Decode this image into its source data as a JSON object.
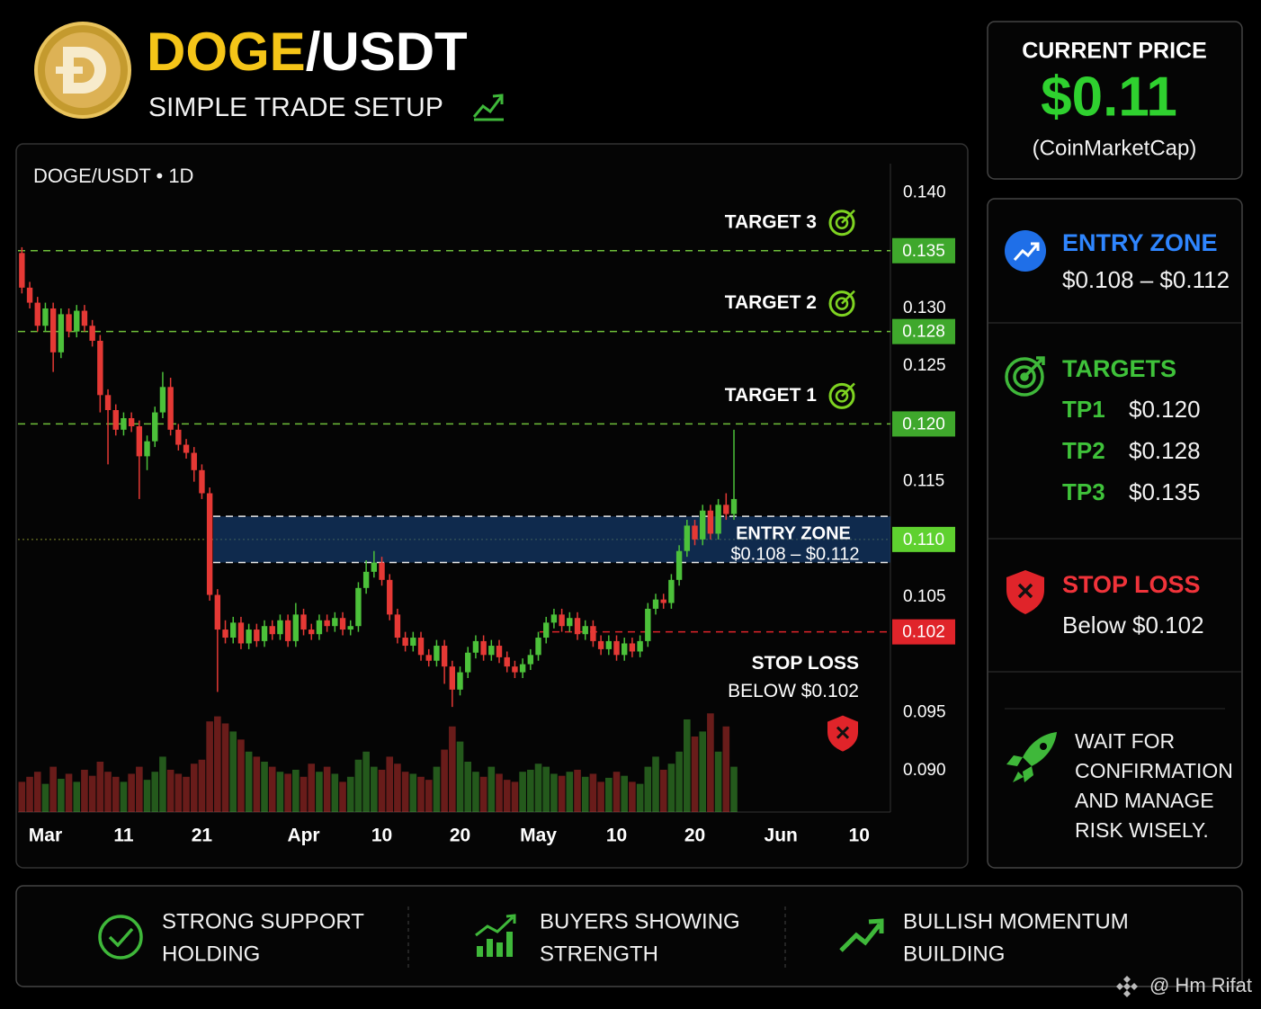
{
  "header": {
    "title_base": "DOGE",
    "title_quote": "/USDT",
    "subtitle": "SIMPLE TRADE SETUP"
  },
  "price_box": {
    "label": "CURRENT PRICE",
    "value": "$0.11",
    "source": "(CoinMarketCap)"
  },
  "plan": {
    "entry": {
      "title": "ENTRY ZONE",
      "range": "$0.108 – $0.112"
    },
    "targets": {
      "title": "TARGETS",
      "items": [
        {
          "name": "TP1",
          "price": "$0.120"
        },
        {
          "name": "TP2",
          "price": "$0.128"
        },
        {
          "name": "TP3",
          "price": "$0.135"
        }
      ]
    },
    "stop": {
      "title": "STOP LOSS",
      "text": "Below $0.102"
    },
    "note": [
      "WAIT FOR",
      "CONFIRMATION",
      "AND MANAGE",
      "RISK WISELY."
    ]
  },
  "footer": {
    "items": [
      {
        "lines": [
          "STRONG SUPPORT",
          "HOLDING"
        ]
      },
      {
        "lines": [
          "BUYERS SHOWING",
          "STRENGTH"
        ]
      },
      {
        "lines": [
          "BULLISH MOMENTUM",
          "BUILDING"
        ]
      }
    ]
  },
  "watermark": "@ Hm Rifat",
  "chart_data": {
    "type": "candlestick",
    "title": "DOGE/USDT • 1D",
    "up_color": "#4cc13a",
    "down_color": "#e53935",
    "xlim": [
      -0.5,
      111
    ],
    "xticks": [
      {
        "value": 3,
        "label": "Mar"
      },
      {
        "value": 13,
        "label": "11"
      },
      {
        "value": 23,
        "label": "21"
      },
      {
        "value": 36,
        "label": "Apr"
      },
      {
        "value": 46,
        "label": "10"
      },
      {
        "value": 56,
        "label": "20"
      },
      {
        "value": 66,
        "label": "May"
      },
      {
        "value": 76,
        "label": "10"
      },
      {
        "value": 86,
        "label": "20"
      },
      {
        "value": 97,
        "label": "Jun"
      },
      {
        "value": 107,
        "label": "10"
      }
    ],
    "ylim": [
      0.0864,
      0.1423
    ],
    "yticks": [
      {
        "value": 0.09,
        "label": "0.090"
      },
      0.095,
      0.105,
      0.115,
      0.125,
      {
        "value": 0.13,
        "label": "0.130"
      },
      {
        "value": 0.14,
        "label": "0.140"
      }
    ],
    "levels": [
      {
        "name": "TARGET 3",
        "value": 0.135,
        "tag": "0.135",
        "color": "#3fa82c"
      },
      {
        "name": "TARGET 2",
        "value": 0.128,
        "tag": "0.128",
        "color": "#3fa82c"
      },
      {
        "name": "TARGET 1",
        "value": 0.12,
        "tag": "0.120",
        "color": "#3fa82c"
      }
    ],
    "current": {
      "value": 0.11,
      "tag": "0.110",
      "color": "#5fd12f"
    },
    "entry_zone": {
      "low": 0.108,
      "high": 0.112,
      "label": "ENTRY ZONE",
      "range_label": "$0.108 – $0.112"
    },
    "stop": {
      "value": 0.102,
      "tag": "0.102",
      "name": "STOP LOSS",
      "note": "BELOW $0.102",
      "color": "#e0242a"
    },
    "vlim": [
      0,
      100
    ],
    "ohlc": [
      [
        0.1348,
        0.1353,
        0.1313,
        0.1318
      ],
      [
        0.1318,
        0.1323,
        0.13,
        0.1305
      ],
      [
        0.1305,
        0.131,
        0.128,
        0.1285
      ],
      [
        0.1285,
        0.1305,
        0.128,
        0.13
      ],
      [
        0.13,
        0.1305,
        0.1245,
        0.1262
      ],
      [
        0.1262,
        0.13,
        0.1257,
        0.1295
      ],
      [
        0.1295,
        0.13,
        0.1275,
        0.128
      ],
      [
        0.128,
        0.1303,
        0.1275,
        0.1298
      ],
      [
        0.1298,
        0.1303,
        0.128,
        0.1285
      ],
      [
        0.1285,
        0.129,
        0.1267,
        0.1272
      ],
      [
        0.1272,
        0.1277,
        0.121,
        0.1225
      ],
      [
        0.1225,
        0.123,
        0.1165,
        0.1212
      ],
      [
        0.1212,
        0.1217,
        0.119,
        0.1195
      ],
      [
        0.1195,
        0.121,
        0.119,
        0.1205
      ],
      [
        0.1205,
        0.121,
        0.1193,
        0.1198
      ],
      [
        0.1198,
        0.1203,
        0.1135,
        0.1172
      ],
      [
        0.1172,
        0.119,
        0.116,
        0.1185
      ],
      [
        0.1185,
        0.1215,
        0.118,
        0.121
      ],
      [
        0.121,
        0.1245,
        0.1205,
        0.1232
      ],
      [
        0.1232,
        0.124,
        0.119,
        0.1195
      ],
      [
        0.1195,
        0.12,
        0.1177,
        0.1182
      ],
      [
        0.1182,
        0.1187,
        0.117,
        0.1175
      ],
      [
        0.1175,
        0.118,
        0.115,
        0.116
      ],
      [
        0.116,
        0.1165,
        0.1135,
        0.114
      ],
      [
        0.114,
        0.1145,
        0.1047,
        0.1052
      ],
      [
        0.1052,
        0.1057,
        0.0968,
        0.1022
      ],
      [
        0.1022,
        0.103,
        0.101,
        0.1015
      ],
      [
        0.1015,
        0.1033,
        0.101,
        0.1028
      ],
      [
        0.1028,
        0.1033,
        0.1005,
        0.101
      ],
      [
        0.101,
        0.1027,
        0.1005,
        0.1022
      ],
      [
        0.1022,
        0.1027,
        0.1007,
        0.1012
      ],
      [
        0.1012,
        0.103,
        0.1007,
        0.1025
      ],
      [
        0.1025,
        0.103,
        0.1013,
        0.1018
      ],
      [
        0.1018,
        0.1035,
        0.1013,
        0.103
      ],
      [
        0.103,
        0.1035,
        0.1007,
        0.1012
      ],
      [
        0.1012,
        0.1045,
        0.1007,
        0.1035
      ],
      [
        0.1035,
        0.104,
        0.1017,
        0.1022
      ],
      [
        0.1022,
        0.1027,
        0.1013,
        0.1018
      ],
      [
        0.1018,
        0.1035,
        0.1013,
        0.103
      ],
      [
        0.103,
        0.1035,
        0.102,
        0.1025
      ],
      [
        0.1025,
        0.1037,
        0.102,
        0.1032
      ],
      [
        0.1032,
        0.1037,
        0.1017,
        0.1022
      ],
      [
        0.1022,
        0.103,
        0.1017,
        0.1025
      ],
      [
        0.1025,
        0.1063,
        0.102,
        0.1058
      ],
      [
        0.1058,
        0.1082,
        0.1053,
        0.1072
      ],
      [
        0.1072,
        0.109,
        0.1067,
        0.108
      ],
      [
        0.108,
        0.1085,
        0.106,
        0.1065
      ],
      [
        0.1065,
        0.107,
        0.103,
        0.1035
      ],
      [
        0.1035,
        0.104,
        0.101,
        0.1015
      ],
      [
        0.1015,
        0.102,
        0.1003,
        0.1008
      ],
      [
        0.1008,
        0.102,
        0.1003,
        0.1015
      ],
      [
        0.1015,
        0.102,
        0.0995,
        0.1
      ],
      [
        0.1,
        0.1005,
        0.099,
        0.0995
      ],
      [
        0.0995,
        0.1013,
        0.099,
        0.1008
      ],
      [
        0.1008,
        0.1013,
        0.0975,
        0.099
      ],
      [
        0.099,
        0.0995,
        0.0955,
        0.097
      ],
      [
        0.097,
        0.099,
        0.0965,
        0.0985
      ],
      [
        0.0985,
        0.1007,
        0.098,
        0.1002
      ],
      [
        0.1002,
        0.1017,
        0.0997,
        0.1012
      ],
      [
        0.1012,
        0.1017,
        0.0995,
        0.1
      ],
      [
        0.1,
        0.1013,
        0.0995,
        0.1008
      ],
      [
        0.1008,
        0.1013,
        0.0993,
        0.0998
      ],
      [
        0.0998,
        0.1003,
        0.0985,
        0.099
      ],
      [
        0.099,
        0.0995,
        0.098,
        0.0985
      ],
      [
        0.0985,
        0.0997,
        0.098,
        0.0992
      ],
      [
        0.0992,
        0.1005,
        0.0987,
        0.1
      ],
      [
        0.1,
        0.102,
        0.0995,
        0.1015
      ],
      [
        0.1015,
        0.1033,
        0.101,
        0.1028
      ],
      [
        0.1028,
        0.104,
        0.1023,
        0.1035
      ],
      [
        0.1035,
        0.104,
        0.102,
        0.1025
      ],
      [
        0.1025,
        0.1037,
        0.102,
        0.1032
      ],
      [
        0.1032,
        0.1037,
        0.1013,
        0.1018
      ],
      [
        0.1018,
        0.103,
        0.1013,
        0.1025
      ],
      [
        0.1025,
        0.103,
        0.1007,
        0.1012
      ],
      [
        0.1012,
        0.1017,
        0.1,
        0.1005
      ],
      [
        0.1005,
        0.1017,
        0.1,
        0.1012
      ],
      [
        0.1012,
        0.1017,
        0.0995,
        0.1
      ],
      [
        0.1,
        0.1015,
        0.0995,
        0.101
      ],
      [
        0.101,
        0.1015,
        0.0998,
        0.1003
      ],
      [
        0.1003,
        0.1017,
        0.0998,
        0.1012
      ],
      [
        0.1012,
        0.1045,
        0.1007,
        0.104
      ],
      [
        0.104,
        0.1053,
        0.1035,
        0.1048
      ],
      [
        0.1048,
        0.1053,
        0.104,
        0.1045
      ],
      [
        0.1045,
        0.107,
        0.104,
        0.1065
      ],
      [
        0.1065,
        0.1095,
        0.106,
        0.109
      ],
      [
        0.109,
        0.1117,
        0.1085,
        0.1112
      ],
      [
        0.1112,
        0.1117,
        0.1095,
        0.11
      ],
      [
        0.11,
        0.113,
        0.1095,
        0.1125
      ],
      [
        0.1125,
        0.113,
        0.11,
        0.1105
      ],
      [
        0.1105,
        0.1135,
        0.11,
        0.113
      ],
      [
        0.113,
        0.114,
        0.1117,
        0.1122
      ],
      [
        0.1122,
        0.1195,
        0.1117,
        0.1135
      ]
    ],
    "volume": [
      30,
      35,
      40,
      28,
      45,
      33,
      38,
      30,
      42,
      36,
      50,
      40,
      35,
      30,
      38,
      45,
      32,
      40,
      55,
      42,
      38,
      35,
      48,
      52,
      90,
      95,
      88,
      80,
      72,
      60,
      55,
      50,
      45,
      40,
      38,
      42,
      35,
      48,
      40,
      45,
      38,
      30,
      35,
      52,
      60,
      45,
      42,
      55,
      48,
      40,
      38,
      35,
      32,
      45,
      62,
      85,
      70,
      50,
      40,
      35,
      45,
      38,
      32,
      30,
      40,
      42,
      48,
      45,
      38,
      36,
      40,
      42,
      35,
      38,
      30,
      34,
      40,
      36,
      30,
      28,
      45,
      55,
      42,
      48,
      60,
      92,
      75,
      80,
      98,
      60,
      85,
      45
    ]
  }
}
